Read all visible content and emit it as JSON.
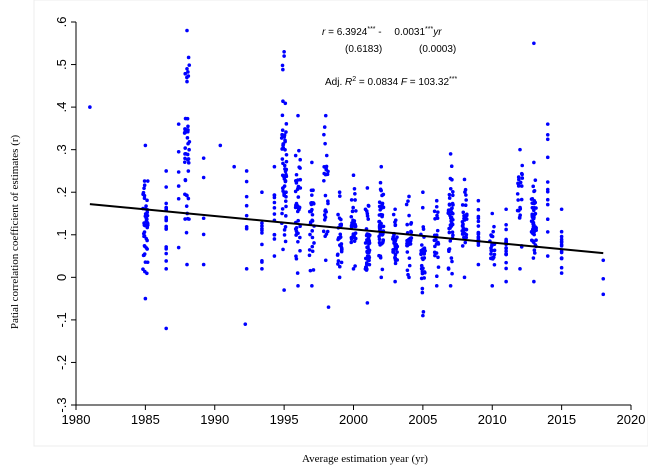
{
  "chart_data": {
    "type": "scatter",
    "title": "",
    "xlabel": "Average estimation year (yr)",
    "ylabel": "Patial correlation coefficient of estimates (r)",
    "xlim": [
      1980,
      2020
    ],
    "ylim": [
      -0.3,
      0.6
    ],
    "xticks": [
      "1980",
      "1985",
      "1990",
      "1995",
      "2000",
      "2005",
      "2010",
      "2015",
      "2020"
    ],
    "yticks": [
      "-.3",
      "-.2",
      "-.1",
      "0",
      ".1",
      ".2",
      ".3",
      ".4",
      ".5",
      ".6"
    ],
    "ytick_values": [
      -0.3,
      -0.2,
      -0.1,
      0,
      0.1,
      0.2,
      0.3,
      0.4,
      0.5,
      0.6
    ],
    "xtick_values": [
      1980,
      1985,
      1990,
      1995,
      2000,
      2005,
      2010,
      2015,
      2020
    ],
    "grid": false,
    "point_color": "#0000ff",
    "line_color": "#000000",
    "fit_line": {
      "x": [
        1981,
        2018
      ],
      "y": [
        0.172,
        0.057
      ]
    },
    "annotation": {
      "line1": [
        "r",
        " = ",
        "6.3924",
        "***",
        " - ",
        "0.0031",
        "***",
        "yr"
      ],
      "line2": [
        "(0.6183)",
        "(0.0003)"
      ],
      "line3": [
        "Adj. ",
        "R",
        "2",
        " = 0.0834  ",
        "F",
        " = 103.32",
        "***"
      ]
    },
    "columns": [
      {
        "x": 1981.0,
        "n": 1,
        "min": 0.4,
        "max": 0.4
      },
      {
        "x": 1985.0,
        "n": 48,
        "min": -0.05,
        "max": 0.31
      },
      {
        "x": 1986.5,
        "n": 18,
        "min": 0.02,
        "max": 0.25
      },
      {
        "x": 1987.4,
        "n": 6,
        "min": 0.07,
        "max": 0.36
      },
      {
        "x": 1988.0,
        "n": 45,
        "min": 0.03,
        "max": 0.58
      },
      {
        "x": 1989.2,
        "n": 5,
        "min": 0.03,
        "max": 0.28
      },
      {
        "x": 1990.4,
        "n": 1,
        "min": 0.31,
        "max": 0.31
      },
      {
        "x": 1991.4,
        "n": 1,
        "min": 0.26,
        "max": 0.26
      },
      {
        "x": 1992.3,
        "n": 8,
        "min": 0.02,
        "max": 0.25
      },
      {
        "x": 1993.4,
        "n": 10,
        "min": 0.02,
        "max": 0.2
      },
      {
        "x": 1994.3,
        "n": 12,
        "min": 0.05,
        "max": 0.26
      },
      {
        "x": 1995.0,
        "n": 60,
        "min": -0.03,
        "max": 0.53
      },
      {
        "x": 1996.0,
        "n": 45,
        "min": -0.02,
        "max": 0.38
      },
      {
        "x": 1997.0,
        "n": 30,
        "min": -0.02,
        "max": 0.27
      },
      {
        "x": 1998.0,
        "n": 28,
        "min": 0.04,
        "max": 0.38
      },
      {
        "x": 1999.0,
        "n": 30,
        "min": 0.0,
        "max": 0.2
      },
      {
        "x": 2000.0,
        "n": 35,
        "min": 0.02,
        "max": 0.24
      },
      {
        "x": 2001.0,
        "n": 45,
        "min": -0.06,
        "max": 0.21
      },
      {
        "x": 2002.0,
        "n": 50,
        "min": 0.0,
        "max": 0.26
      },
      {
        "x": 2003.0,
        "n": 35,
        "min": -0.01,
        "max": 0.16
      },
      {
        "x": 2004.0,
        "n": 30,
        "min": 0.0,
        "max": 0.19
      },
      {
        "x": 2005.0,
        "n": 35,
        "min": -0.09,
        "max": 0.2
      },
      {
        "x": 2006.0,
        "n": 25,
        "min": -0.02,
        "max": 0.18
      },
      {
        "x": 2007.0,
        "n": 45,
        "min": -0.02,
        "max": 0.29
      },
      {
        "x": 2008.0,
        "n": 35,
        "min": 0.0,
        "max": 0.23
      },
      {
        "x": 2009.0,
        "n": 20,
        "min": 0.03,
        "max": 0.18
      },
      {
        "x": 2010.0,
        "n": 25,
        "min": -0.02,
        "max": 0.15
      },
      {
        "x": 2011.0,
        "n": 20,
        "min": -0.01,
        "max": 0.16
      },
      {
        "x": 2012.0,
        "n": 25,
        "min": 0.02,
        "max": 0.3
      },
      {
        "x": 2013.0,
        "n": 55,
        "min": -0.01,
        "max": 0.27
      },
      {
        "x": 2014.0,
        "n": 12,
        "min": 0.05,
        "max": 0.36
      },
      {
        "x": 2015.0,
        "n": 15,
        "min": 0.01,
        "max": 0.16
      },
      {
        "x": 2018.0,
        "n": 3,
        "min": -0.04,
        "max": 0.04
      }
    ],
    "extra_points": [
      {
        "x": 1986.5,
        "y": -0.12
      },
      {
        "x": 1992.2,
        "y": -0.11
      },
      {
        "x": 1998.2,
        "y": -0.07
      },
      {
        "x": 2013.0,
        "y": 0.55
      },
      {
        "x": 1995.0,
        "y": 0.52
      },
      {
        "x": 1988.0,
        "y": 0.49
      },
      {
        "x": 1988.0,
        "y": 0.46
      }
    ]
  }
}
